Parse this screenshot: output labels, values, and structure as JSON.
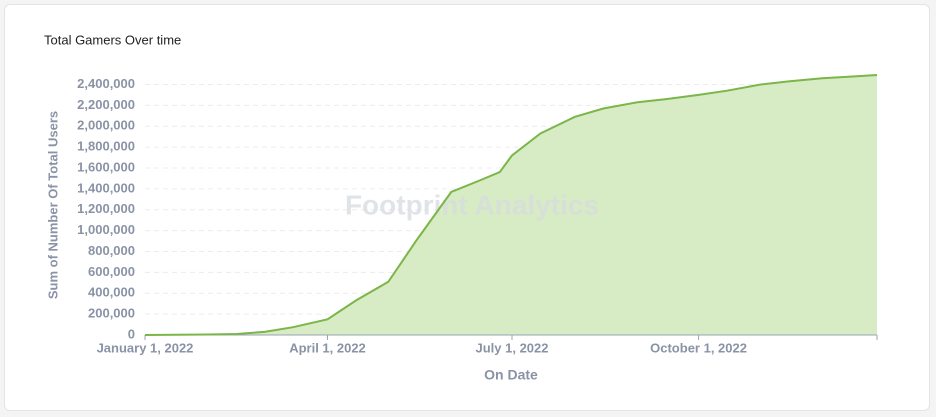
{
  "chart_data": {
    "type": "area",
    "title": "Total Gamers Over time",
    "x_label": "On Date",
    "y_label": "Sum of Number Of Total Users",
    "watermark": "Footprint Analytics",
    "color": "#7ab648",
    "fill_color": "#d7ebc4",
    "grid": true,
    "xlim": [
      "2022-01-01",
      "2022-12-28"
    ],
    "xticks": [
      {
        "value": "2022-01-01",
        "label": "January 1, 2022"
      },
      {
        "value": "2022-04-01",
        "label": "April 1, 2022"
      },
      {
        "value": "2022-07-01",
        "label": "July 1, 2022"
      },
      {
        "value": "2022-10-01",
        "label": "October 1, 2022"
      }
    ],
    "ylim": [
      0,
      2500000
    ],
    "yticks": [
      0,
      {
        "value": 200000,
        "label": "200,000"
      },
      {
        "value": 400000,
        "label": "400,000"
      },
      {
        "value": 600000,
        "label": "600,000"
      },
      {
        "value": 800000,
        "label": "800,000"
      },
      {
        "value": 1000000,
        "label": "1,000,000"
      },
      {
        "value": 1200000,
        "label": "1,200,000"
      },
      {
        "value": 1400000,
        "label": "1,400,000"
      },
      {
        "value": 1600000,
        "label": "1,600,000"
      },
      {
        "value": 1800000,
        "label": "1,800,000"
      },
      {
        "value": 2000000,
        "label": "2,000,000"
      },
      {
        "value": 2200000,
        "label": "2,200,000"
      },
      {
        "value": 2400000,
        "label": "2,400,000"
      }
    ],
    "x": [
      "2022-01-01",
      "2022-02-01",
      "2022-02-15",
      "2022-03-01",
      "2022-03-15",
      "2022-04-01",
      "2022-04-15",
      "2022-05-01",
      "2022-05-15",
      "2022-06-01",
      "2022-06-15",
      "2022-06-25",
      "2022-07-01",
      "2022-07-15",
      "2022-08-01",
      "2022-08-15",
      "2022-09-01",
      "2022-09-15",
      "2022-10-01",
      "2022-10-15",
      "2022-11-01",
      "2022-11-15",
      "2022-12-01",
      "2022-12-15",
      "2022-12-28"
    ],
    "values": [
      0,
      5000,
      10000,
      30000,
      75000,
      150000,
      330000,
      510000,
      910000,
      1370000,
      1480000,
      1560000,
      1720000,
      1930000,
      2090000,
      2170000,
      2230000,
      2260000,
      2300000,
      2340000,
      2400000,
      2430000,
      2460000,
      2475000,
      2490000
    ]
  }
}
